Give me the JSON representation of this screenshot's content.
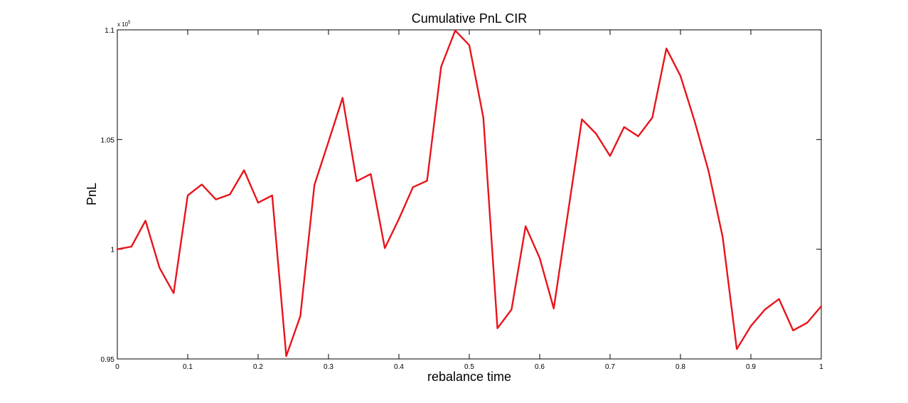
{
  "chart_data": {
    "type": "line",
    "title": "Cumulative PnL CIR",
    "xlabel": "rebalance time",
    "ylabel": "PnL",
    "y_exponent_label": "x 10",
    "y_exponent_power": "5",
    "xlim": [
      0,
      1
    ],
    "ylim": [
      0.95,
      1.1
    ],
    "grid": false,
    "x_ticks": [
      0,
      0.1,
      0.2,
      0.3,
      0.4,
      0.5,
      0.6,
      0.7,
      0.8,
      0.9,
      1
    ],
    "x_tick_labels": [
      "0",
      "0.1",
      "0.2",
      "0.3",
      "0.4",
      "0.5",
      "0.6",
      "0.7",
      "0.8",
      "0.9",
      "1"
    ],
    "y_ticks": [
      0.95,
      1.0,
      1.05,
      1.1
    ],
    "y_tick_labels": [
      "0.95",
      "1",
      "1.05",
      "1.1"
    ],
    "colors": {
      "series": "#e8141b",
      "axes": "#000000",
      "background": "#ffffff"
    },
    "series": [
      {
        "name": "Cumulative PnL",
        "x": [
          0,
          0.02,
          0.04,
          0.06,
          0.08,
          0.1,
          0.12,
          0.14,
          0.16,
          0.18,
          0.2,
          0.22,
          0.24,
          0.26,
          0.28,
          0.3,
          0.32,
          0.34,
          0.36,
          0.38,
          0.4,
          0.42,
          0.44,
          0.46,
          0.48,
          0.5,
          0.52,
          0.54,
          0.56,
          0.58,
          0.6,
          0.62,
          0.64,
          0.66,
          0.68,
          0.7,
          0.72,
          0.74,
          0.76,
          0.78,
          0.8,
          0.82,
          0.84,
          0.86,
          0.88,
          0.9,
          0.92,
          0.94,
          0.96,
          0.98,
          1.0
        ],
        "values": [
          1.0,
          1.0012,
          1.013,
          0.9915,
          0.98,
          1.0245,
          1.0295,
          1.0227,
          1.025,
          1.036,
          1.0212,
          1.0245,
          0.9513,
          0.9695,
          1.0293,
          1.049,
          1.069,
          1.031,
          1.0343,
          1.0005,
          1.0138,
          1.0283,
          1.0312,
          1.0832,
          1.0997,
          1.093,
          1.06,
          0.964,
          0.9725,
          1.0105,
          0.996,
          0.973,
          1.0162,
          1.0592,
          1.0527,
          1.0425,
          1.0557,
          1.0515,
          1.06,
          1.0915,
          1.079,
          1.0585,
          1.0355,
          1.0055,
          0.9545,
          0.965,
          0.9725,
          0.9773,
          0.963,
          0.9665,
          0.974
        ]
      }
    ]
  }
}
